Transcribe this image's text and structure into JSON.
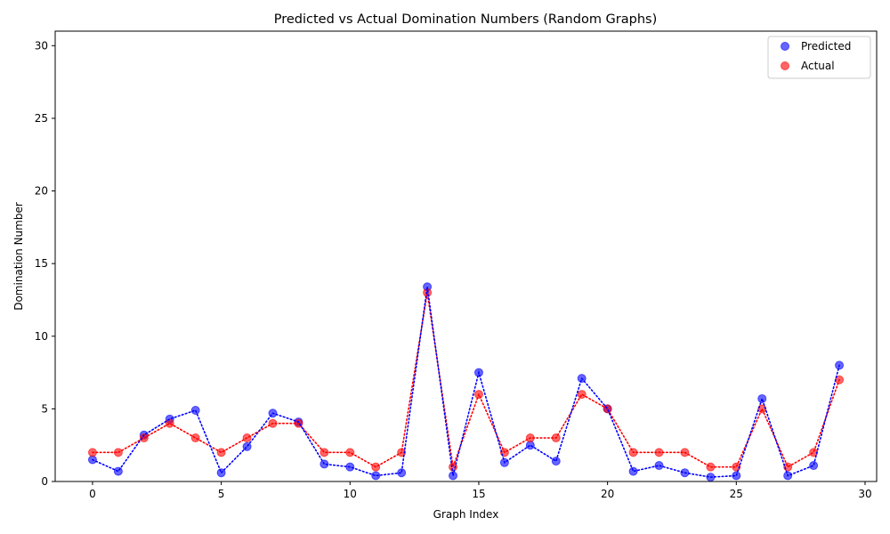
{
  "chart_data": {
    "type": "scatter",
    "title": "Predicted vs Actual Domination Numbers (Random Graphs)",
    "xlabel": "Graph Index",
    "ylabel": "Domination Number",
    "xlim": [
      -1.45,
      30.45
    ],
    "ylim": [
      0,
      31
    ],
    "xticks": [
      0,
      5,
      10,
      15,
      20,
      25,
      30
    ],
    "yticks": [
      0,
      5,
      10,
      15,
      20,
      25,
      30
    ],
    "grid": false,
    "legend_position": "top-right",
    "connector_style": "dotted",
    "x": [
      0,
      1,
      2,
      3,
      4,
      5,
      6,
      7,
      8,
      9,
      10,
      11,
      12,
      13,
      14,
      15,
      16,
      17,
      18,
      19,
      20,
      21,
      22,
      23,
      24,
      25,
      26,
      27,
      28,
      29
    ],
    "series": [
      {
        "name": "Predicted",
        "color": "#0000ff",
        "values": [
          1.5,
          0.7,
          3.2,
          4.3,
          4.9,
          0.6,
          2.4,
          4.7,
          4.1,
          1.2,
          1.0,
          0.4,
          0.6,
          13.4,
          0.4,
          7.5,
          1.3,
          2.5,
          1.4,
          7.1,
          5.0,
          0.7,
          1.1,
          0.6,
          0.3,
          0.4,
          5.7,
          0.4,
          1.1,
          8.0
        ]
      },
      {
        "name": "Actual",
        "color": "#ff0000",
        "values": [
          2,
          2,
          3,
          4,
          3,
          2,
          3,
          4,
          4,
          2,
          2,
          1,
          2,
          13,
          1,
          6,
          2,
          3,
          3,
          6,
          5,
          2,
          2,
          2,
          1,
          1,
          5,
          1,
          2,
          7
        ]
      }
    ]
  }
}
